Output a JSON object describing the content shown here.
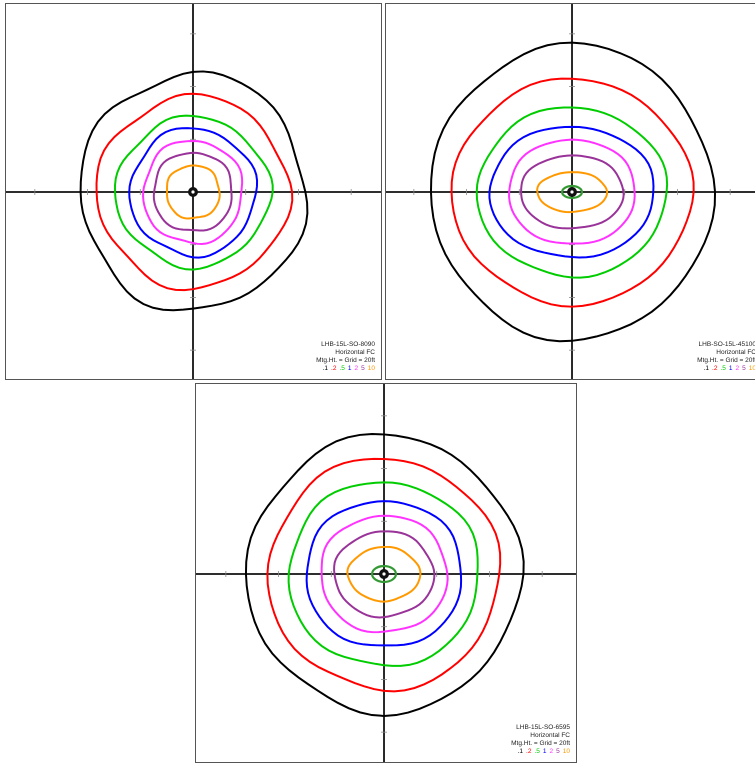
{
  "contour_levels": [
    {
      "value": ".1",
      "color": "#000000"
    },
    {
      "value": ".2",
      "color": "#ff0000"
    },
    {
      "value": ".5",
      "color": "#00cc00"
    },
    {
      "value": "1",
      "color": "#0000ff"
    },
    {
      "value": "2",
      "color": "#ff33ff"
    },
    {
      "value": "5",
      "color": "#993399"
    },
    {
      "value": "10",
      "color": "#ff9900"
    }
  ],
  "center_contour_color": "#339933",
  "panels": [
    {
      "model": "LHB-15L-SO-8090",
      "measure": "Horizontal FC",
      "grid_note": "Mtg.Ht. = Grid = 20ft"
    },
    {
      "model": "LHB-SO-15L-45100",
      "measure": "Horizontal FC",
      "grid_note": "Mtg.Ht. = Grid = 20ft"
    },
    {
      "model": "LHB-15L-SO-6595",
      "measure": "Horizontal FC",
      "grid_note": "Mtg.Ht. = Grid = 20ft"
    }
  ]
}
